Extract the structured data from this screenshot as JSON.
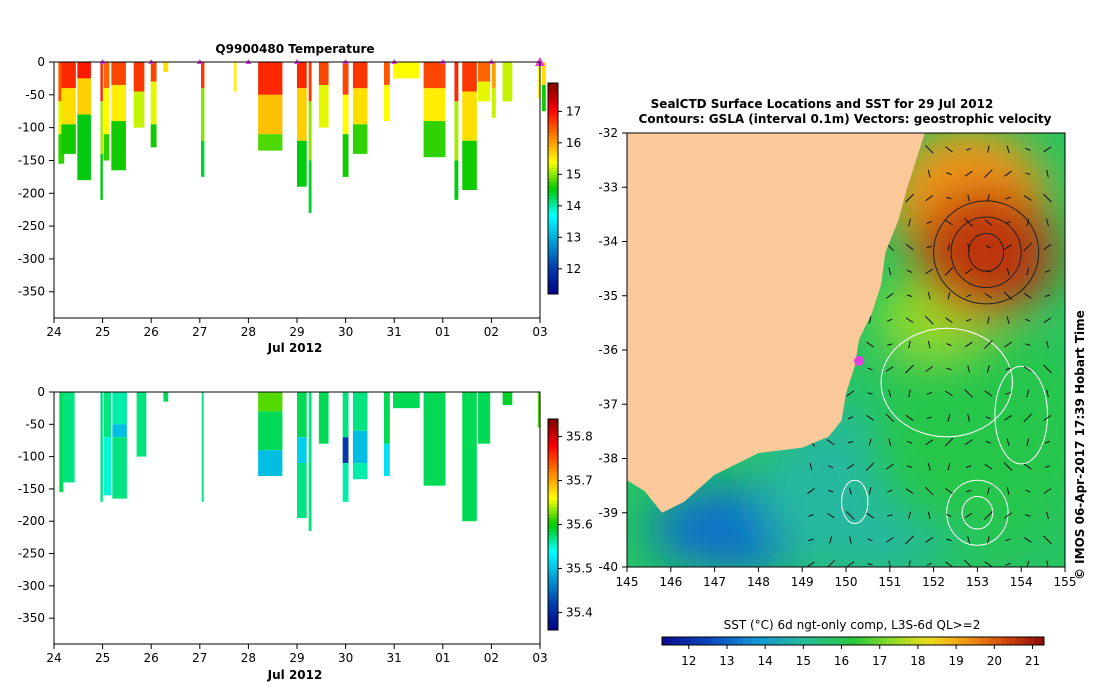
{
  "chart_data": [
    {
      "type": "heatmap",
      "title": "Q9900480  Temperature",
      "xlabel": "Jul 2012",
      "x_ticks": [
        "24",
        "25",
        "26",
        "27",
        "28",
        "29",
        "30",
        "31",
        "01",
        "02",
        "03"
      ],
      "y_ticks": [
        "0",
        "-50",
        "-100",
        "-150",
        "-200",
        "-250",
        "-300",
        "-350"
      ],
      "ylim": [
        -390,
        0
      ],
      "colorbar": {
        "ticks": [
          "12",
          "13",
          "14",
          "15",
          "16",
          "17"
        ],
        "range": [
          11.2,
          17.9
        ]
      },
      "profiles": [
        {
          "day": 0.15,
          "width": 0.12,
          "depth": 155,
          "layers": [
            [
              0,
              60,
              16.5
            ],
            [
              60,
              110,
              15.3
            ],
            [
              110,
              155,
              14.7
            ]
          ]
        },
        {
          "day": 0.3,
          "width": 0.3,
          "depth": 140,
          "layers": [
            [
              0,
              40,
              16.8
            ],
            [
              40,
              95,
              15.6
            ],
            [
              95,
              140,
              14.6
            ]
          ]
        },
        {
          "day": 0.62,
          "width": 0.28,
          "depth": 180,
          "layers": [
            [
              0,
              25,
              16.9
            ],
            [
              25,
              80,
              15.7
            ],
            [
              80,
              180,
              14.5
            ]
          ]
        },
        {
          "day": 0.98,
          "width": 0.05,
          "depth": 210,
          "layers": [
            [
              0,
              60,
              16.8
            ],
            [
              60,
              140,
              15.1
            ],
            [
              140,
              210,
              14.5
            ]
          ]
        },
        {
          "day": 1.08,
          "width": 0.12,
          "depth": 150,
          "layers": [
            [
              0,
              40,
              16.4
            ],
            [
              40,
              110,
              15.4
            ],
            [
              110,
              150,
              14.7
            ]
          ]
        },
        {
          "day": 1.33,
          "width": 0.3,
          "depth": 165,
          "layers": [
            [
              0,
              35,
              16.6
            ],
            [
              35,
              90,
              15.5
            ],
            [
              90,
              165,
              14.6
            ]
          ]
        },
        {
          "day": 1.75,
          "width": 0.22,
          "depth": 100,
          "layers": [
            [
              0,
              45,
              16.7
            ],
            [
              45,
              100,
              15.2
            ]
          ]
        },
        {
          "day": 2.05,
          "width": 0.12,
          "depth": 130,
          "layers": [
            [
              0,
              30,
              16.6
            ],
            [
              30,
              95,
              15.3
            ],
            [
              95,
              130,
              14.6
            ]
          ]
        },
        {
          "day": 2.3,
          "width": 0.1,
          "depth": 15,
          "layers": [
            [
              0,
              15,
              15.6
            ]
          ]
        },
        {
          "day": 3.06,
          "width": 0.07,
          "depth": 175,
          "layers": [
            [
              0,
              40,
              16.7
            ],
            [
              40,
              120,
              15.0
            ],
            [
              120,
              175,
              14.4
            ]
          ]
        },
        {
          "day": 3.73,
          "width": 0.05,
          "depth": 45,
          "layers": [
            [
              0,
              45,
              15.5
            ]
          ]
        },
        {
          "day": 4.45,
          "width": 0.5,
          "depth": 135,
          "layers": [
            [
              0,
              50,
              16.8
            ],
            [
              50,
              110,
              15.8
            ],
            [
              110,
              135,
              14.8
            ]
          ]
        },
        {
          "day": 5.1,
          "width": 0.2,
          "depth": 190,
          "layers": [
            [
              0,
              40,
              16.8
            ],
            [
              40,
              120,
              15.7
            ],
            [
              120,
              190,
              14.5
            ]
          ]
        },
        {
          "day": 5.27,
          "width": 0.06,
          "depth": 230,
          "layers": [
            [
              0,
              60,
              16.7
            ],
            [
              60,
              150,
              15.0
            ],
            [
              150,
              230,
              14.4
            ]
          ]
        },
        {
          "day": 5.55,
          "width": 0.2,
          "depth": 100,
          "layers": [
            [
              0,
              35,
              16.6
            ],
            [
              35,
              100,
              15.3
            ]
          ]
        },
        {
          "day": 6.0,
          "width": 0.12,
          "depth": 175,
          "layers": [
            [
              0,
              50,
              16.6
            ],
            [
              50,
              110,
              15.4
            ],
            [
              110,
              175,
              14.6
            ]
          ]
        },
        {
          "day": 6.3,
          "width": 0.3,
          "depth": 140,
          "layers": [
            [
              0,
              40,
              16.7
            ],
            [
              40,
              95,
              15.6
            ],
            [
              95,
              140,
              14.7
            ]
          ]
        },
        {
          "day": 6.85,
          "width": 0.12,
          "depth": 90,
          "layers": [
            [
              0,
              35,
              16.5
            ],
            [
              35,
              90,
              15.4
            ]
          ]
        },
        {
          "day": 7.25,
          "width": 0.55,
          "depth": 25,
          "layers": [
            [
              0,
              25,
              15.4
            ]
          ]
        },
        {
          "day": 7.83,
          "width": 0.45,
          "depth": 145,
          "layers": [
            [
              0,
              40,
              16.6
            ],
            [
              40,
              90,
              15.5
            ],
            [
              90,
              145,
              14.7
            ]
          ]
        },
        {
          "day": 8.28,
          "width": 0.08,
          "depth": 210,
          "layers": [
            [
              0,
              60,
              16.8
            ],
            [
              60,
              150,
              15.1
            ],
            [
              150,
              210,
              14.5
            ]
          ]
        },
        {
          "day": 8.55,
          "width": 0.3,
          "depth": 195,
          "layers": [
            [
              0,
              45,
              16.7
            ],
            [
              45,
              120,
              15.6
            ],
            [
              120,
              195,
              14.6
            ]
          ]
        },
        {
          "day": 8.85,
          "width": 0.25,
          "depth": 60,
          "layers": [
            [
              0,
              30,
              16.4
            ],
            [
              30,
              60,
              15.3
            ]
          ]
        },
        {
          "day": 9.05,
          "width": 0.08,
          "depth": 85,
          "layers": [
            [
              0,
              40,
              16.0
            ],
            [
              40,
              85,
              15.2
            ]
          ]
        },
        {
          "day": 9.33,
          "width": 0.2,
          "depth": 60,
          "layers": [
            [
              0,
              60,
              15.2
            ]
          ]
        },
        {
          "day": 9.98,
          "width": 0.05,
          "depth": 55,
          "layers": [
            [
              0,
              55,
              15.4
            ]
          ]
        },
        {
          "day": 10.08,
          "width": 0.08,
          "depth": 75,
          "layers": [
            [
              0,
              35,
              15.6
            ],
            [
              35,
              75,
              14.6
            ]
          ]
        }
      ],
      "markers": [
        1.0,
        2.0,
        3.0,
        4.0,
        5.0,
        6.0,
        7.0,
        8.0,
        9.0,
        10.0
      ]
    },
    {
      "type": "heatmap",
      "title": "",
      "xlabel": "Jul 2012",
      "x_ticks": [
        "24",
        "25",
        "26",
        "27",
        "28",
        "29",
        "30",
        "31",
        "01",
        "02",
        "03"
      ],
      "y_ticks": [
        "0",
        "-50",
        "-100",
        "-150",
        "-200",
        "-250",
        "-300",
        "-350"
      ],
      "ylim": [
        -390,
        0
      ],
      "colorbar": {
        "ticks": [
          "35.4",
          "35.5",
          "35.6",
          "35.7",
          "35.8"
        ],
        "range": [
          35.36,
          35.84
        ]
      },
      "profiles": [
        {
          "day": 0.15,
          "width": 0.08,
          "depth": 155,
          "layers": [
            [
              0,
              155,
              35.58
            ]
          ]
        },
        {
          "day": 0.3,
          "width": 0.25,
          "depth": 140,
          "layers": [
            [
              0,
              140,
              35.57
            ]
          ]
        },
        {
          "day": 0.98,
          "width": 0.05,
          "depth": 170,
          "layers": [
            [
              0,
              170,
              35.57
            ]
          ]
        },
        {
          "day": 1.1,
          "width": 0.15,
          "depth": 160,
          "layers": [
            [
              0,
              70,
              35.57
            ],
            [
              70,
              160,
              35.55
            ]
          ]
        },
        {
          "day": 1.35,
          "width": 0.3,
          "depth": 165,
          "layers": [
            [
              0,
              50,
              35.56
            ],
            [
              50,
              70,
              35.5
            ],
            [
              70,
              165,
              35.57
            ]
          ]
        },
        {
          "day": 1.8,
          "width": 0.2,
          "depth": 100,
          "layers": [
            [
              0,
              100,
              35.57
            ]
          ]
        },
        {
          "day": 2.3,
          "width": 0.1,
          "depth": 15,
          "layers": [
            [
              0,
              15,
              35.58
            ]
          ]
        },
        {
          "day": 3.06,
          "width": 0.04,
          "depth": 170,
          "layers": [
            [
              0,
              170,
              35.57
            ]
          ]
        },
        {
          "day": 4.45,
          "width": 0.5,
          "depth": 130,
          "layers": [
            [
              0,
              30,
              35.62
            ],
            [
              30,
              90,
              35.58
            ],
            [
              90,
              130,
              35.5
            ]
          ]
        },
        {
          "day": 5.1,
          "width": 0.2,
          "depth": 195,
          "layers": [
            [
              0,
              70,
              35.58
            ],
            [
              70,
              110,
              35.51
            ],
            [
              110,
              195,
              35.57
            ]
          ]
        },
        {
          "day": 5.27,
          "width": 0.06,
          "depth": 215,
          "layers": [
            [
              0,
              215,
              35.57
            ]
          ]
        },
        {
          "day": 5.55,
          "width": 0.2,
          "depth": 80,
          "layers": [
            [
              0,
              80,
              35.58
            ]
          ]
        },
        {
          "day": 6.0,
          "width": 0.12,
          "depth": 170,
          "layers": [
            [
              0,
              70,
              35.57
            ],
            [
              70,
              110,
              35.42
            ],
            [
              110,
              170,
              35.56
            ]
          ]
        },
        {
          "day": 6.3,
          "width": 0.3,
          "depth": 135,
          "layers": [
            [
              0,
              60,
              35.57
            ],
            [
              60,
              110,
              35.5
            ],
            [
              110,
              135,
              35.56
            ]
          ]
        },
        {
          "day": 6.85,
          "width": 0.12,
          "depth": 130,
          "layers": [
            [
              0,
              80,
              35.58
            ],
            [
              80,
              130,
              35.52
            ]
          ]
        },
        {
          "day": 7.25,
          "width": 0.55,
          "depth": 25,
          "layers": [
            [
              0,
              25,
              35.58
            ]
          ]
        },
        {
          "day": 7.83,
          "width": 0.45,
          "depth": 145,
          "layers": [
            [
              0,
              145,
              35.58
            ]
          ]
        },
        {
          "day": 8.55,
          "width": 0.3,
          "depth": 200,
          "layers": [
            [
              0,
              200,
              35.58
            ]
          ]
        },
        {
          "day": 8.85,
          "width": 0.25,
          "depth": 80,
          "layers": [
            [
              0,
              80,
              35.58
            ]
          ]
        },
        {
          "day": 9.33,
          "width": 0.2,
          "depth": 20,
          "layers": [
            [
              0,
              20,
              35.59
            ]
          ]
        },
        {
          "day": 9.98,
          "width": 0.05,
          "depth": 55,
          "layers": [
            [
              0,
              55,
              35.62
            ]
          ]
        }
      ],
      "markers": []
    },
    {
      "type": "heatmap",
      "title": "SealCTD Surface Locations and SST for 29 Jul 2012",
      "subtitle": "Contours: GSLA (interval 0.1m) Vectors: geostrophic velocity",
      "x_ticks": [
        "145",
        "146",
        "147",
        "148",
        "149",
        "150",
        "151",
        "152",
        "153",
        "154",
        "155"
      ],
      "y_ticks": [
        "-32",
        "-33",
        "-34",
        "-35",
        "-36",
        "-37",
        "-38",
        "-39",
        "-40"
      ],
      "xlim": [
        145,
        155
      ],
      "ylim": [
        -40,
        -32
      ],
      "colorbar": {
        "label": "SST (°C) 6d ngt-only comp, L3S-6d QL>=2",
        "ticks": [
          "12",
          "13",
          "14",
          "15",
          "16",
          "17",
          "18",
          "19",
          "20",
          "21"
        ],
        "range": [
          11.3,
          21.3
        ]
      },
      "land": [
        [
          145.0,
          -32.0
        ],
        [
          151.8,
          -32.0
        ],
        [
          151.6,
          -32.5
        ],
        [
          151.4,
          -33.0
        ],
        [
          151.2,
          -33.6
        ],
        [
          150.9,
          -34.2
        ],
        [
          150.8,
          -34.8
        ],
        [
          150.6,
          -35.3
        ],
        [
          150.3,
          -35.8
        ],
        [
          150.2,
          -36.3
        ],
        [
          150.0,
          -36.8
        ],
        [
          149.9,
          -37.3
        ],
        [
          149.6,
          -37.6
        ],
        [
          149.0,
          -37.8
        ],
        [
          148.0,
          -37.9
        ],
        [
          147.0,
          -38.3
        ],
        [
          146.3,
          -38.8
        ],
        [
          145.8,
          -39.0
        ],
        [
          145.4,
          -38.6
        ],
        [
          145.0,
          -38.4
        ]
      ],
      "sst_regions": [
        {
          "center": [
            153.2,
            -34.2
          ],
          "radius": [
            1.6,
            1.2
          ],
          "temp": 20.6
        },
        {
          "center": [
            152.8,
            -33.2
          ],
          "radius": [
            1.8,
            1.3
          ],
          "temp": 19.3
        },
        {
          "center": [
            152.0,
            -35.4
          ],
          "radius": [
            1.3,
            0.7
          ],
          "temp": 17.4
        },
        {
          "center": [
            153.0,
            -37.5
          ],
          "radius": [
            2.5,
            2.0
          ],
          "temp": 16.1
        },
        {
          "center": [
            150.5,
            -38.6
          ],
          "radius": [
            2.5,
            1.6
          ],
          "temp": 14.9
        },
        {
          "center": [
            147.5,
            -39.3
          ],
          "radius": [
            2.0,
            0.8
          ],
          "temp": 13.2
        }
      ],
      "ctd_location": [
        150.3,
        -36.2
      ]
    }
  ],
  "side_label": "© IMOS 06-Apr-2017 17:39 Hobart Time",
  "colors": {
    "land": "#fbc99a",
    "marker": "#e040e0",
    "axis": "#000000"
  }
}
